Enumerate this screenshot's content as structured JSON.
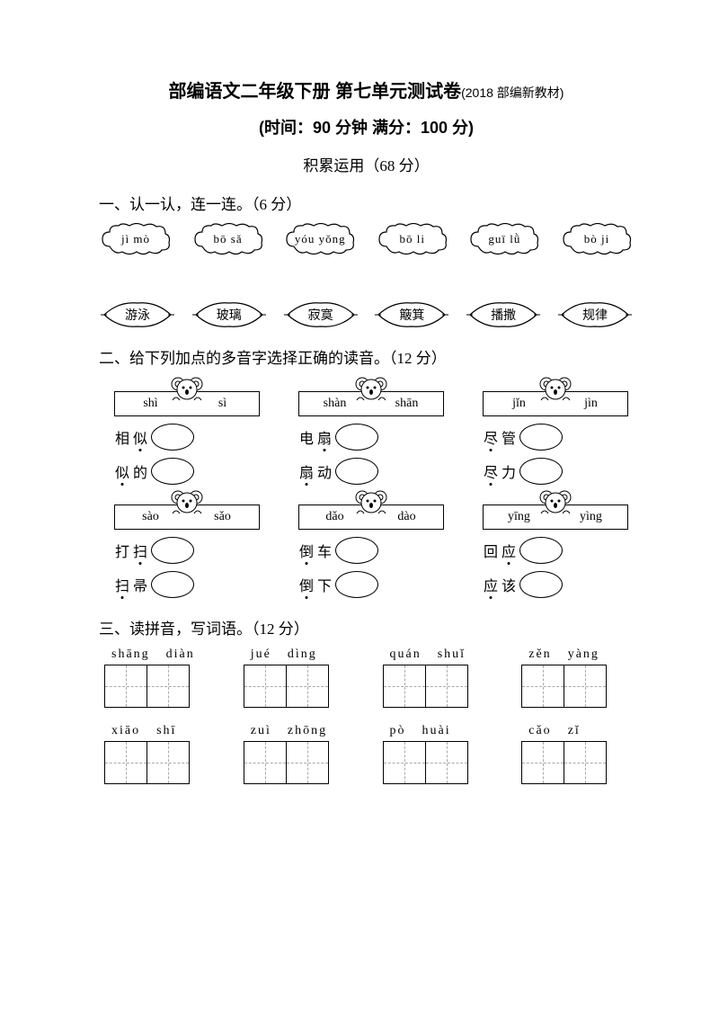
{
  "title_main": "部编语文二年级下册  第七单元测试卷",
  "title_sub": "(2018 部编新教材)",
  "subtitle": "(时间：90 分钟   满分：100 分)",
  "section_score": "积累运用（68 分）",
  "s1": {
    "heading": "一、认一认，连一连。（6 分）",
    "clouds": [
      "jì mò",
      "bō sǎ",
      "yóu yǒng",
      "bō li",
      "guī lǜ",
      "bò ji"
    ],
    "leaves": [
      "游泳",
      "玻璃",
      "寂寞",
      "簸箕",
      "播撒",
      "规律"
    ]
  },
  "s2": {
    "heading": "二、给下列加点的多音字选择正确的读音。（12 分）",
    "blocks": [
      {
        "opts": [
          "shì",
          "sì"
        ],
        "w1": {
          "chars": [
            "相",
            "似"
          ],
          "dot": 1
        },
        "w2": {
          "chars": [
            "似",
            "的"
          ],
          "dot": 0
        }
      },
      {
        "opts": [
          "shàn",
          "shān"
        ],
        "w1": {
          "chars": [
            "电",
            "扇"
          ],
          "dot": 1
        },
        "w2": {
          "chars": [
            "扇",
            "动"
          ],
          "dot": 0
        }
      },
      {
        "opts": [
          "jǐn",
          "jìn"
        ],
        "w1": {
          "chars": [
            "尽",
            "管"
          ],
          "dot": 0
        },
        "w2": {
          "chars": [
            "尽",
            "力"
          ],
          "dot": 0
        }
      },
      {
        "opts": [
          "sào",
          "sǎo"
        ],
        "w1": {
          "chars": [
            "打",
            "扫"
          ],
          "dot": 1
        },
        "w2": {
          "chars": [
            "扫",
            "帚"
          ],
          "dot": 0
        }
      },
      {
        "opts": [
          "dǎo",
          "dào"
        ],
        "w1": {
          "chars": [
            "倒",
            "车"
          ],
          "dot": 0
        },
        "w2": {
          "chars": [
            "倒",
            "下"
          ],
          "dot": 0
        }
      },
      {
        "opts": [
          "yīng",
          "yìng"
        ],
        "w1": {
          "chars": [
            "回",
            "应"
          ],
          "dot": 1
        },
        "w2": {
          "chars": [
            "应",
            "该"
          ],
          "dot": 0
        }
      }
    ]
  },
  "s3": {
    "heading": "三、读拼音，写词语。（12 分）",
    "items": [
      {
        "p1": "shāng",
        "p2": "diàn"
      },
      {
        "p1": "jué",
        "p2": "dìng"
      },
      {
        "p1": "quán",
        "p2": "shuǐ"
      },
      {
        "p1": "zěn",
        "p2": "yàng"
      },
      {
        "p1": "xiāo",
        "p2": "shī"
      },
      {
        "p1": "zuì",
        "p2": "zhōng"
      },
      {
        "p1": "pò",
        "p2": "huài"
      },
      {
        "p1": "cǎo",
        "p2": "zǐ"
      }
    ]
  }
}
